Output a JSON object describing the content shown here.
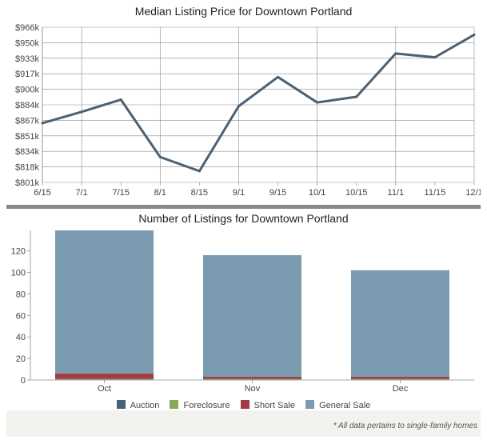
{
  "footnote": "* All data pertains to single-family homes",
  "legend": {
    "items": [
      {
        "label": "Auction",
        "color": "#45627a"
      },
      {
        "label": "Foreclosure",
        "color": "#86a95a"
      },
      {
        "label": "Short Sale",
        "color": "#a23a48"
      },
      {
        "label": "General Sale",
        "color": "#7b9cb0"
      }
    ]
  },
  "chart_data": [
    {
      "type": "line",
      "title": "Median Listing Price for Downtown Portland",
      "x_ticks": [
        "6/15",
        "7/1",
        "7/15",
        "8/1",
        "8/15",
        "9/1",
        "9/15",
        "10/1",
        "10/15",
        "11/1",
        "11/15",
        "12/1"
      ],
      "y_ticks": [
        "$801k",
        "$818k",
        "$834k",
        "$851k",
        "$867k",
        "$884k",
        "$900k",
        "$917k",
        "$933k",
        "$950k",
        "$966k"
      ],
      "ylim": [
        801,
        966
      ],
      "y_unit": "k",
      "line_color": "#4a6175",
      "series": [
        {
          "values": [
            864,
            876,
            889,
            828,
            813,
            882,
            913,
            886,
            892,
            938,
            934,
            958
          ]
        }
      ],
      "grid": true
    },
    {
      "type": "bar",
      "stacked": true,
      "title": "Number of Listings for Downtown Portland",
      "categories": [
        "Oct",
        "Nov",
        "Dec"
      ],
      "y_ticks": [
        0,
        20,
        40,
        60,
        80,
        100,
        120
      ],
      "ylim": [
        0,
        139
      ],
      "series": [
        {
          "name": "Auction",
          "values": [
            0,
            0,
            0
          ]
        },
        {
          "name": "Foreclosure",
          "values": [
            1,
            1,
            1
          ]
        },
        {
          "name": "Short Sale",
          "values": [
            5,
            2,
            2
          ]
        },
        {
          "name": "General Sale",
          "values": [
            133,
            113,
            99
          ]
        }
      ]
    }
  ]
}
